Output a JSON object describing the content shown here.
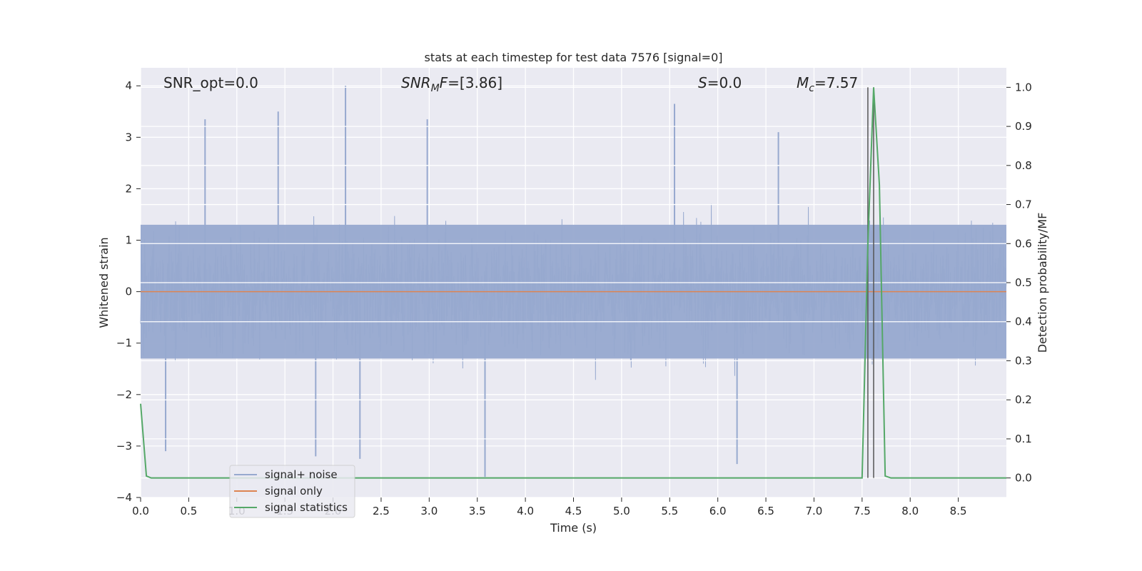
{
  "chart_data": {
    "type": "line",
    "title": "stats at each timestep for test data 7576 [signal=0]",
    "xlabel": "Time (s)",
    "ylabel_left": "Whitened strain",
    "ylabel_right": "Detection probability/MF",
    "xlim": [
      0.0,
      9.0
    ],
    "ylim_left": [
      -4,
      4.35
    ],
    "ylim_right": [
      -0.05,
      1.05
    ],
    "x_ticks": [
      "0.0",
      "0.5",
      "1.0",
      "1.5",
      "2.0",
      "2.5",
      "3.0",
      "3.5",
      "4.0",
      "4.5",
      "5.0",
      "5.5",
      "6.0",
      "6.5",
      "7.0",
      "7.5",
      "8.0",
      "8.5"
    ],
    "y_ticks_left": [
      4,
      3,
      2,
      1,
      0,
      -1,
      -2,
      -3,
      -4
    ],
    "y_ticks_left_labels": [
      "4",
      "3",
      "2",
      "1",
      "0",
      "−1",
      "−2",
      "−3",
      "−4"
    ],
    "y_ticks_right": [
      "1.0",
      "0.9",
      "0.8",
      "0.7",
      "0.6",
      "0.5",
      "0.4",
      "0.3",
      "0.2",
      "0.1",
      "0.0"
    ],
    "grid": true,
    "legend_position": "lower-left",
    "annotations": {
      "snr_opt": "SNR_opt=0.0",
      "snr_mf_label": "SNR",
      "snr_mf_sub": "M",
      "snr_mf_rest": "F=[3.86]",
      "s_label": "S",
      "s_rest": "=0.0",
      "mc_label": "M",
      "mc_sub": "c",
      "mc_rest": "=7.57"
    },
    "series": [
      {
        "name": "signal+ noise",
        "color": "#97a9cf",
        "axis": "left",
        "description_stats": {
          "typical_range": [
            -1.3,
            1.3
          ],
          "peak_max": 4.0,
          "peak_min": -3.6
        },
        "notable_peaks": [
          {
            "x": 0.67,
            "y": 3.35
          },
          {
            "x": 1.43,
            "y": 3.5
          },
          {
            "x": 2.13,
            "y": 4.0
          },
          {
            "x": 2.98,
            "y": 3.35
          },
          {
            "x": 5.55,
            "y": 3.65
          },
          {
            "x": 6.63,
            "y": 3.1
          },
          {
            "x": 3.58,
            "y": -3.6
          },
          {
            "x": 1.82,
            "y": -3.2
          },
          {
            "x": 2.28,
            "y": -3.25
          },
          {
            "x": 6.2,
            "y": -3.35
          },
          {
            "x": 0.26,
            "y": -3.1
          }
        ]
      },
      {
        "name": "signal only",
        "color": "#dd8452",
        "axis": "left",
        "x": [
          0.0,
          9.0
        ],
        "y": [
          0.0,
          0.0
        ]
      },
      {
        "name": "signal statistics",
        "color": "#55a868",
        "axis": "right",
        "x": [
          0.0,
          0.06,
          0.11,
          0.17,
          7.5,
          7.56,
          7.62,
          7.68,
          7.74,
          7.8,
          9.0
        ],
        "y": [
          0.19,
          0.005,
          0.0,
          0.0,
          0.0,
          0.6,
          1.0,
          0.75,
          0.005,
          0.0,
          0.0
        ]
      }
    ],
    "vlines": [
      {
        "x": 7.56,
        "y": [
          0.0,
          1.0
        ],
        "color": "#555555"
      },
      {
        "x": 7.62,
        "y": [
          0.0,
          1.0
        ],
        "color": "#555555"
      }
    ]
  },
  "colors": {
    "plot_bg": "#eaeaf2",
    "grid": "#ffffff",
    "text": "#262626"
  }
}
